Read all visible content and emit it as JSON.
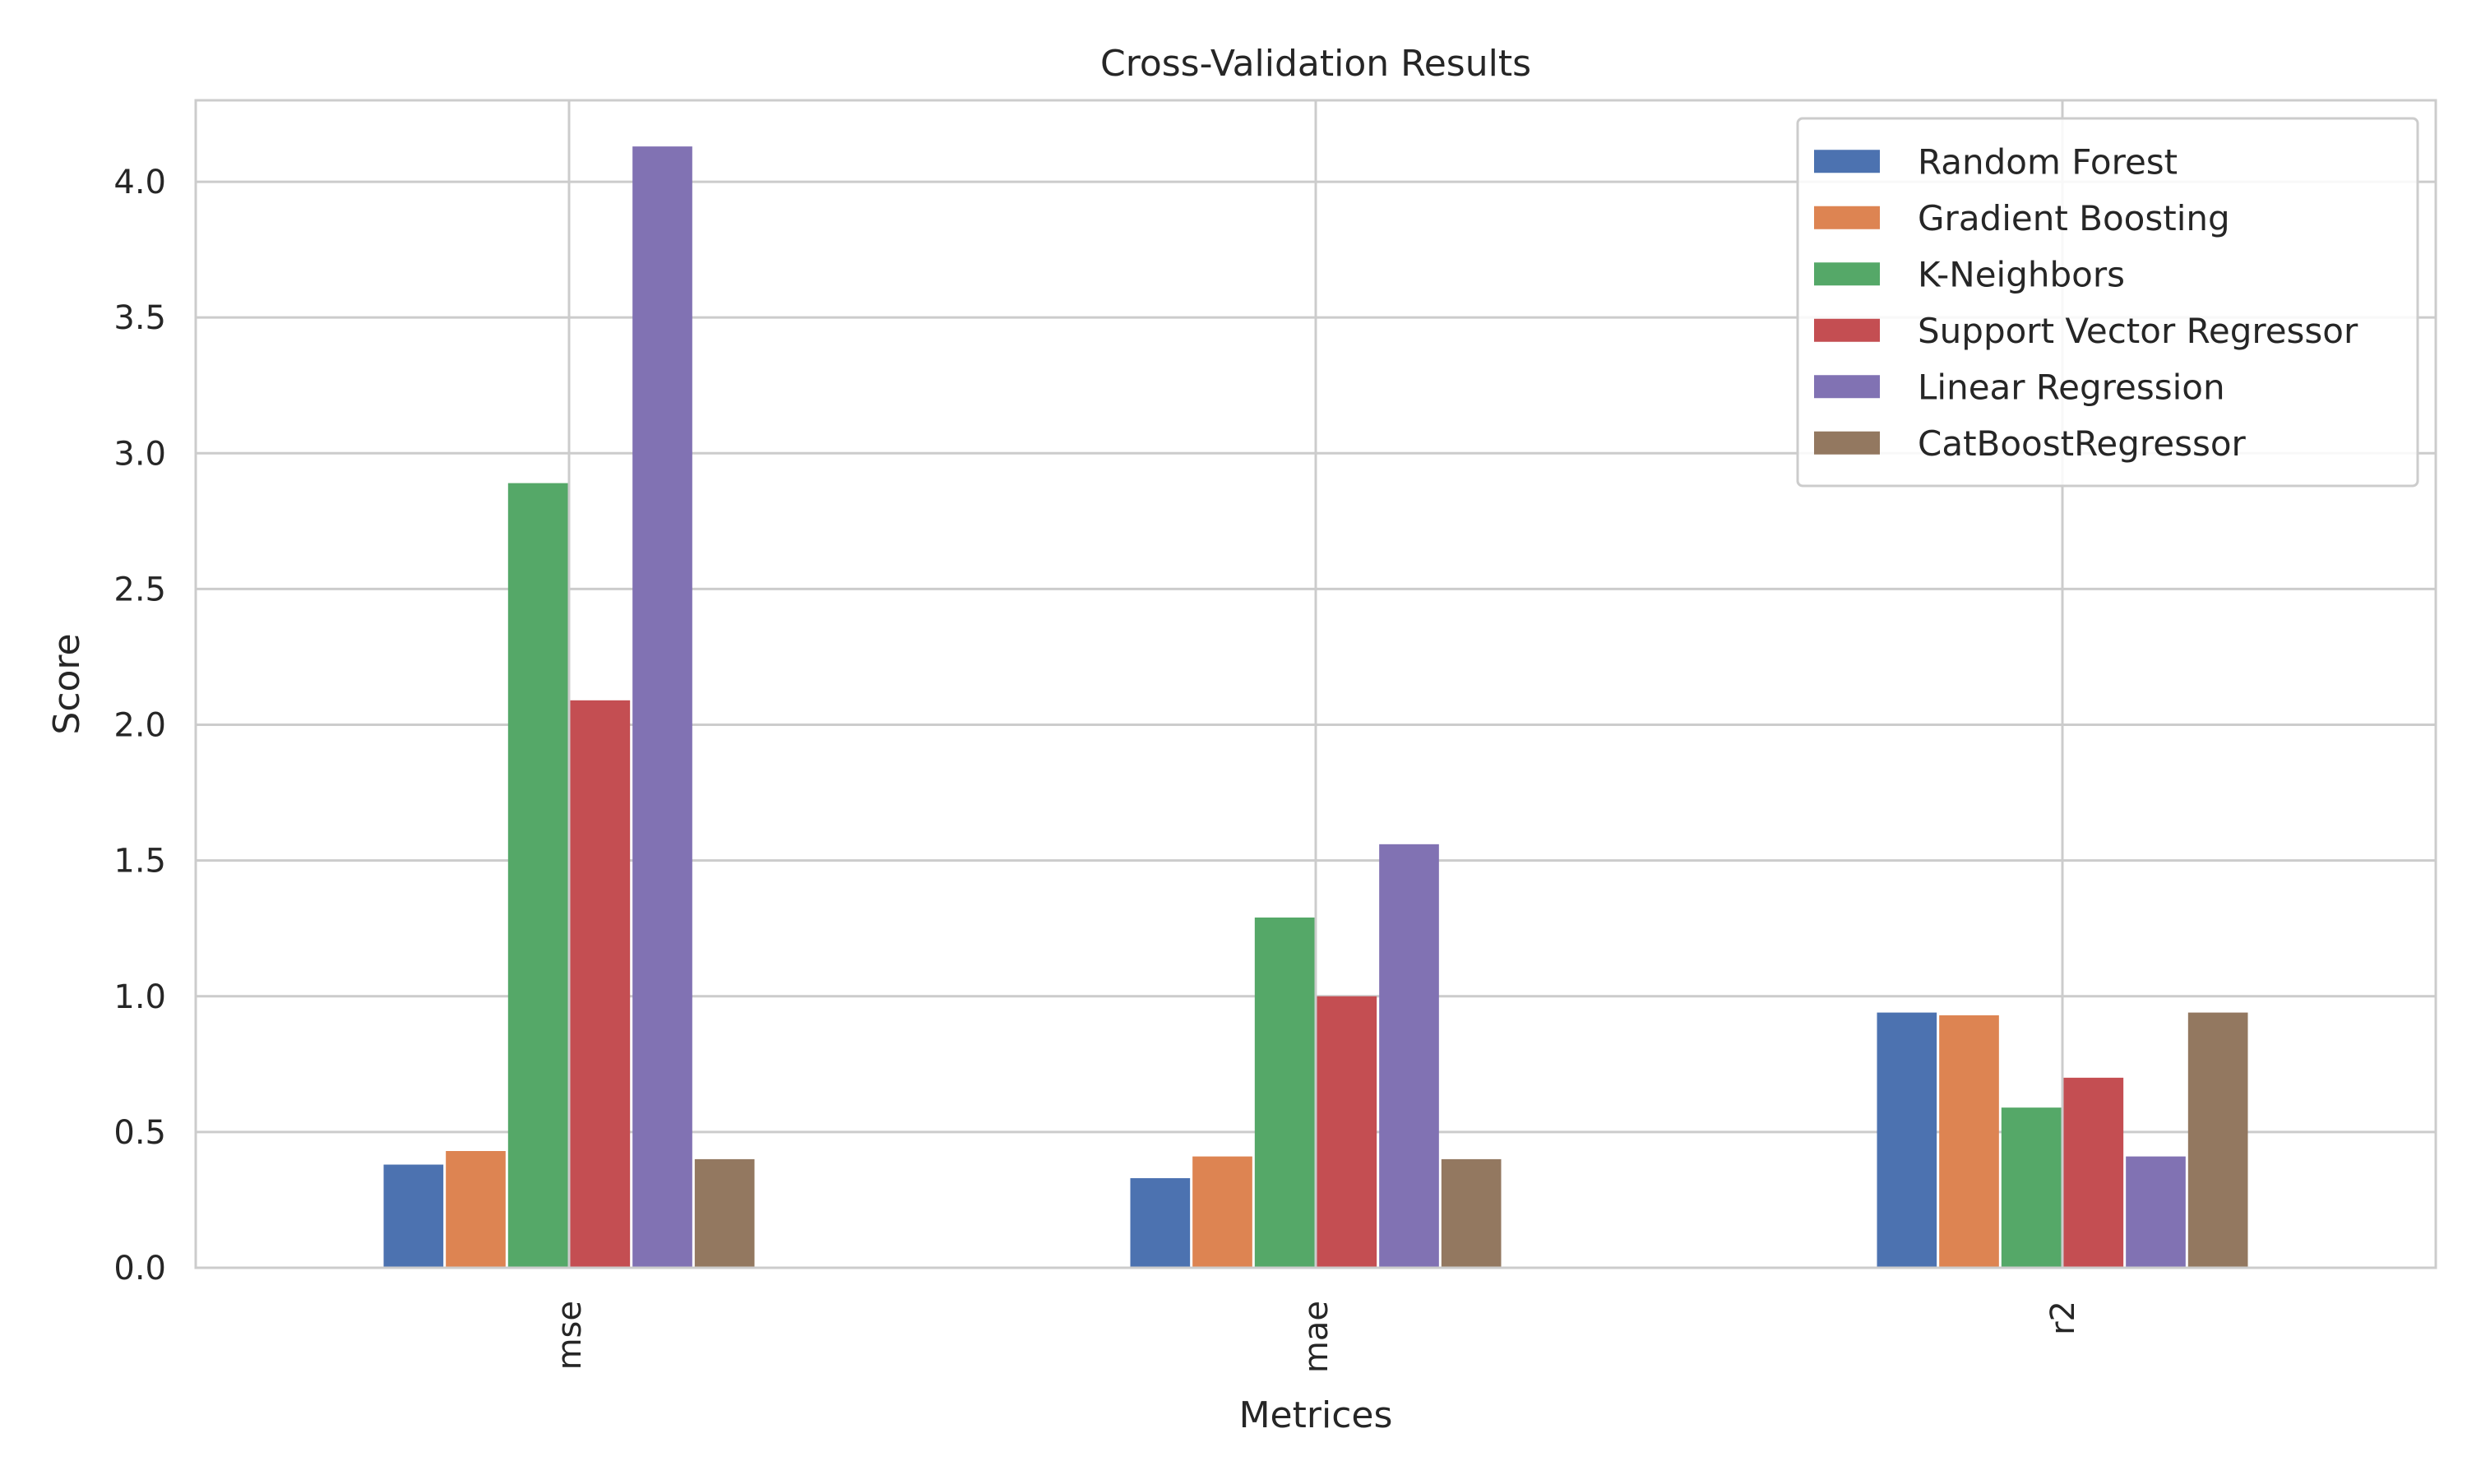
{
  "chart_data": {
    "type": "bar",
    "title": "Cross-Validation Results",
    "xlabel": "Metrices",
    "ylabel": "Score",
    "categories": [
      "mse",
      "mae",
      "r2"
    ],
    "ylim": [
      0,
      4.3
    ],
    "yticks": [
      "0.0",
      "0.5",
      "1.0",
      "1.5",
      "2.0",
      "2.5",
      "3.0",
      "3.5",
      "4.0"
    ],
    "grid": true,
    "legend_position": "top-right",
    "series": [
      {
        "name": "Random Forest",
        "color": "#4c72b0",
        "values": [
          0.38,
          0.33,
          0.94
        ]
      },
      {
        "name": "Gradient Boosting",
        "color": "#dd8452",
        "values": [
          0.43,
          0.41,
          0.93
        ]
      },
      {
        "name": "K-Neighbors",
        "color": "#55a868",
        "values": [
          2.89,
          1.29,
          0.59
        ]
      },
      {
        "name": "Support Vector Regressor",
        "color": "#c44e52",
        "values": [
          2.09,
          1.0,
          0.7
        ]
      },
      {
        "name": "Linear Regression",
        "color": "#8172b3",
        "values": [
          4.13,
          1.56,
          0.41
        ]
      },
      {
        "name": "CatBoostRegressor",
        "color": "#937860",
        "values": [
          0.4,
          0.4,
          0.94
        ]
      }
    ]
  }
}
